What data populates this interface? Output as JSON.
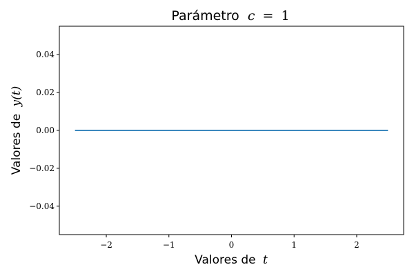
{
  "chart_data": {
    "type": "line",
    "title": "Parámetro c = 1",
    "title_text": "Parámetro",
    "title_math": {
      "var": "c",
      "op": "=",
      "val": "1"
    },
    "xlabel": "Valores de t",
    "xlabel_text": "Valores de",
    "xlabel_math": "t",
    "ylabel": "Valores de y(t)",
    "ylabel_text": "Valores de",
    "ylabel_math": "y(t)",
    "xlim": [
      -2.75,
      2.75
    ],
    "ylim": [
      -0.055,
      0.055
    ],
    "x_ticks": [
      -2,
      -1,
      0,
      1,
      2
    ],
    "x_tick_labels": [
      "−2",
      "−1",
      "0",
      "1",
      "2"
    ],
    "y_ticks": [
      0.04,
      0.02,
      0.0,
      -0.02,
      -0.04
    ],
    "y_tick_labels": [
      "0.04",
      "0.02",
      "0.00",
      "−0.02",
      "−0.04"
    ],
    "grid": false,
    "series": [
      {
        "color": "#1f77b4",
        "x": [
          -2.5,
          2.5
        ],
        "y": [
          0,
          0
        ]
      }
    ]
  }
}
